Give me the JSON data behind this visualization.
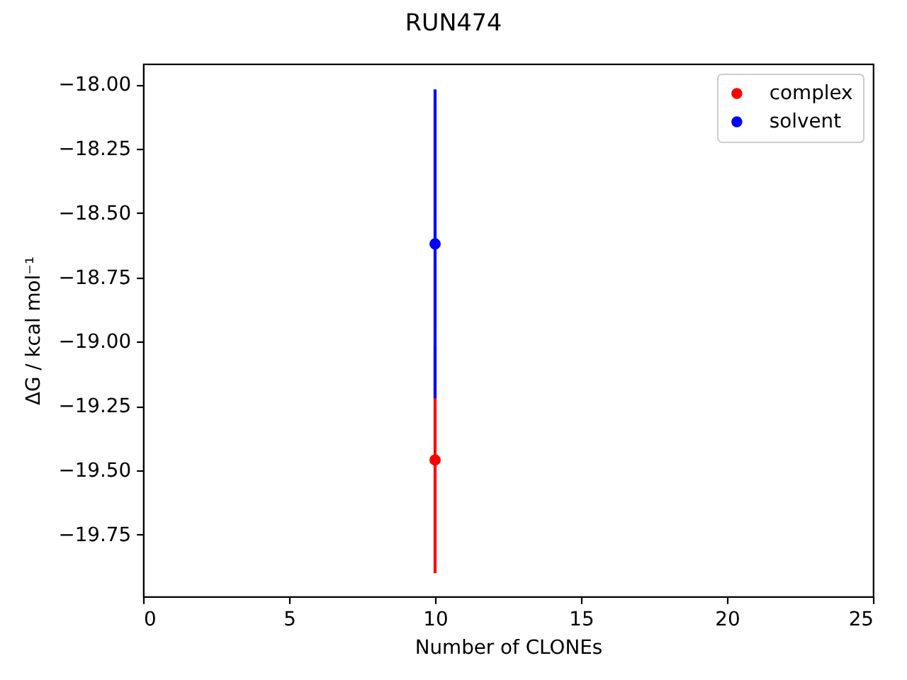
{
  "chart_data": {
    "type": "scatter",
    "title": "RUN474",
    "xlabel": "Number of CLONEs",
    "ylabel": "ΔG / kcal mol⁻¹",
    "x": [
      10
    ],
    "series": [
      {
        "name": "complex",
        "color": "#ff0000",
        "values": [
          -19.46
        ],
        "errors": [
          0.44
        ]
      },
      {
        "name": "solvent",
        "color": "#0000ff",
        "values": [
          -18.62
        ],
        "errors": [
          0.6
        ]
      }
    ],
    "xlim": [
      0,
      25
    ],
    "xticks": [
      0,
      5,
      10,
      15,
      20,
      25
    ],
    "ylim": [
      -19.99,
      -17.92
    ],
    "yticks": [
      {
        "value": -18,
        "label": "−18.00"
      },
      {
        "value": -18.25,
        "label": "−18.25"
      },
      {
        "value": -18.5,
        "label": "−18.50"
      },
      {
        "value": -18.75,
        "label": "−18.75"
      },
      {
        "value": -19,
        "label": "−19.00"
      },
      {
        "value": -19.25,
        "label": "−19.25"
      },
      {
        "value": -19.5,
        "label": "−19.50"
      },
      {
        "value": -19.75,
        "label": "−19.75"
      }
    ],
    "legend": "top right",
    "marker": "circle"
  }
}
